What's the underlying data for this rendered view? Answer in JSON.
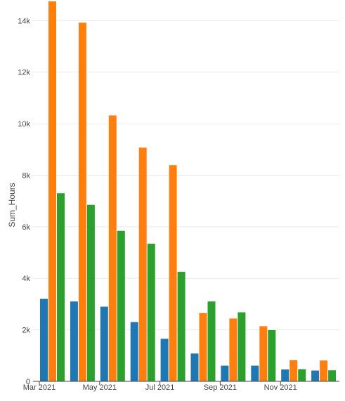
{
  "chart_data": {
    "type": "bar",
    "title": "",
    "xlabel": "",
    "ylabel": "Sum_Hours",
    "ylim": [
      0,
      14800
    ],
    "grid": true,
    "legend": "none",
    "categories": [
      "2021-03",
      "2021-04",
      "2021-05",
      "2021-06",
      "2021-07",
      "2021-08",
      "2021-09",
      "2021-10",
      "2021-11"
    ],
    "series": [
      {
        "color": "#1f77b4",
        "values": [
          3200,
          3100,
          2900,
          2300,
          1650,
          1080,
          610,
          610,
          460
        ]
      },
      {
        "color": "#ff7f0e",
        "values": [
          14750,
          13920,
          10320,
          9070,
          8390,
          2650,
          2440,
          2140,
          820
        ]
      },
      {
        "color": "#2ca02c",
        "values": [
          7300,
          6850,
          5840,
          5340,
          4250,
          3100,
          2680,
          1990,
          470
        ]
      }
    ],
    "extra_month": {
      "category": "2021-12",
      "values": [
        420,
        810,
        430
      ]
    },
    "yticks": [
      {
        "value": 0,
        "label": "0"
      },
      {
        "value": 2000,
        "label": "2k"
      },
      {
        "value": 4000,
        "label": "4k"
      },
      {
        "value": 6000,
        "label": "6k"
      },
      {
        "value": 8000,
        "label": "8k"
      },
      {
        "value": 10000,
        "label": "10k"
      },
      {
        "value": 12000,
        "label": "12k"
      },
      {
        "value": 14000,
        "label": "14k"
      }
    ],
    "xticks": [
      {
        "month_index": 0,
        "label": "Mar 2021"
      },
      {
        "month_index": 2,
        "label": "May 2021"
      },
      {
        "month_index": 4,
        "label": "Jul 2021"
      },
      {
        "month_index": 6,
        "label": "Sep 2021"
      },
      {
        "month_index": 8,
        "label": "Nov 2021"
      }
    ]
  }
}
